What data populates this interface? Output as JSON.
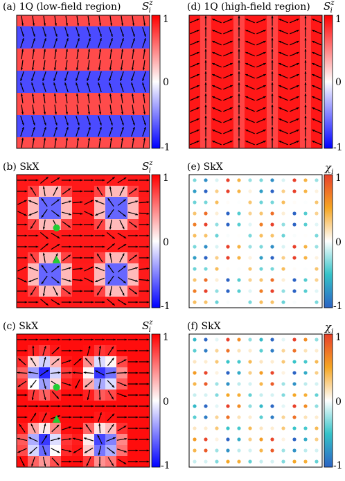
{
  "panels": [
    {
      "id": "a",
      "label": "(a) 1Q (low-field region)",
      "field": "spin",
      "pattern": "stripe_low",
      "colorbar": "Sz"
    },
    {
      "id": "d",
      "label": "(d) 1Q (high-field region)",
      "field": "spin",
      "pattern": "stripe_high",
      "colorbar": "Sz"
    },
    {
      "id": "b",
      "label": "(b) SkX",
      "field": "spin",
      "pattern": "skx_b",
      "colorbar": "Sz",
      "markers": [
        {
          "shape": "circle",
          "color": "#22cc33"
        },
        {
          "shape": "triangle",
          "color": "#22cc33"
        }
      ]
    },
    {
      "id": "e",
      "label": "(e) SkX",
      "field": "chirality",
      "pattern": "chi_e",
      "colorbar": "chi"
    },
    {
      "id": "c",
      "label": "(c) SkX",
      "field": "spin",
      "pattern": "skx_c",
      "colorbar": "Sz",
      "markers": [
        {
          "shape": "circle",
          "color": "#22cc33"
        },
        {
          "shape": "triangle",
          "color": "#22cc33"
        }
      ]
    },
    {
      "id": "f",
      "label": "(f) SkX",
      "field": "chirality",
      "pattern": "chi_f",
      "colorbar": "chi"
    }
  ],
  "colorbars": {
    "Sz": {
      "title": "S",
      "title_sup": "z",
      "title_sub": "i",
      "ticks": [
        "1",
        "0",
        "-1"
      ],
      "colors": [
        "#ff0000",
        "#ffffff",
        "#0000ff"
      ]
    },
    "chi": {
      "title": "χ",
      "title_sub": "i",
      "ticks": [
        "1",
        "0",
        "-1"
      ],
      "colors": [
        "#e8402a",
        "#f5a623",
        "#ffffff",
        "#35c3c8",
        "#2b63c4"
      ]
    }
  },
  "lattice": {
    "size": 12
  }
}
